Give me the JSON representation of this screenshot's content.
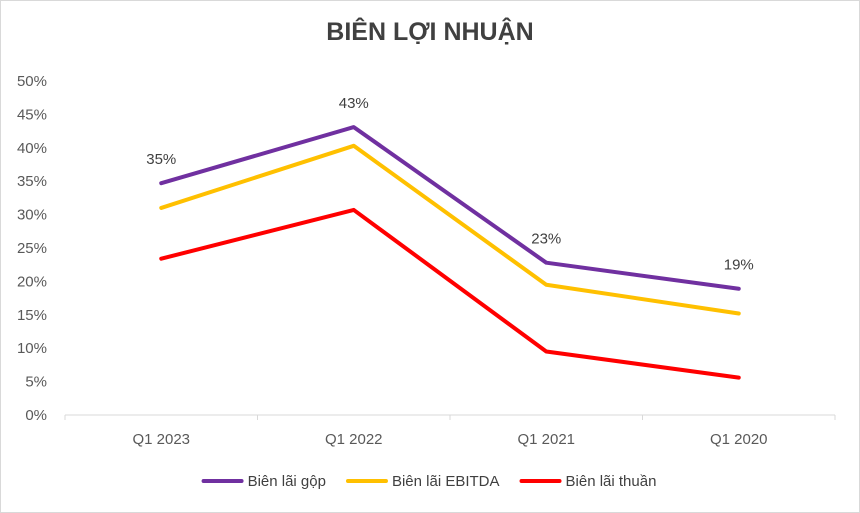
{
  "chart_data": {
    "type": "line",
    "title": "BIÊN LỢI NHUẬN",
    "categories": [
      "Q1 2023",
      "Q1 2022",
      "Q1 2021",
      "Q1 2020"
    ],
    "ylim": [
      0,
      0.5
    ],
    "yticks": [
      "0%",
      "5%",
      "10%",
      "15%",
      "20%",
      "25%",
      "30%",
      "35%",
      "40%",
      "45%",
      "50%"
    ],
    "grid": false,
    "legend": "bottom",
    "series": [
      {
        "name": "Biên lãi gộp",
        "color": "#7030a0",
        "values": [
          0.347,
          0.431,
          0.228,
          0.189
        ],
        "labels": [
          "35%",
          "43%",
          "23%",
          "19%"
        ]
      },
      {
        "name": "Biên lãi EBITDA",
        "color": "#ffc000",
        "values": [
          0.31,
          0.403,
          0.195,
          0.152
        ]
      },
      {
        "name": "Biên lãi thuần",
        "color": "#ff0000",
        "values": [
          0.234,
          0.307,
          0.095,
          0.056
        ]
      }
    ]
  }
}
